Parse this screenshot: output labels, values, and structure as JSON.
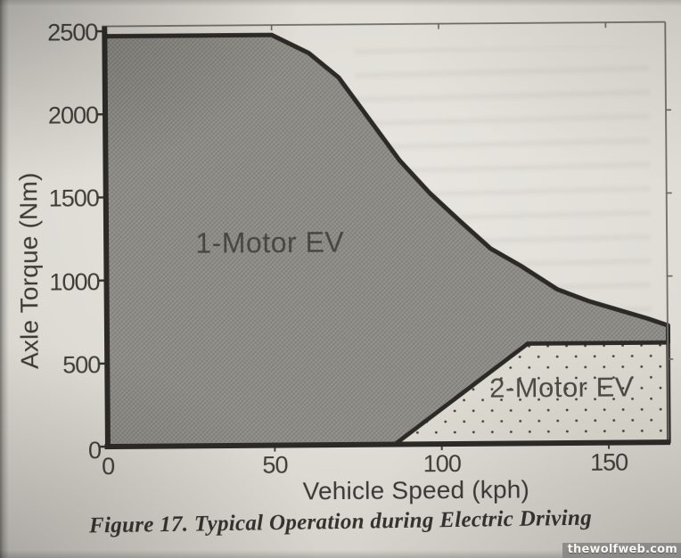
{
  "figure": {
    "caption": "Figure 17. Typical Operation during Electric Driving",
    "watermark": "thewolfweb.com"
  },
  "chart_data": {
    "type": "area",
    "title": "",
    "xlabel": "Vehicle Speed (kph)",
    "ylabel": "Axle Torque (Nm)",
    "xlim": [
      0,
      168
    ],
    "ylim": [
      0,
      2500
    ],
    "x_ticks": [
      0,
      50,
      100,
      150
    ],
    "y_ticks": [
      0,
      500,
      1000,
      1500,
      2000,
      2500
    ],
    "grid": false,
    "legend": "labels drawn inside regions",
    "regions": [
      {
        "name": "1-motor-ev",
        "label": "1-Motor EV",
        "label_pos": {
          "speed_kph": 49,
          "torque_nm": 1220
        },
        "fill": "#8e8d88",
        "pattern": "hatch",
        "points": [
          [
            0,
            0
          ],
          [
            0,
            2470
          ],
          [
            50,
            2470
          ],
          [
            61,
            2360
          ],
          [
            70,
            2210
          ],
          [
            79,
            1960
          ],
          [
            88,
            1710
          ],
          [
            97,
            1510
          ],
          [
            106,
            1340
          ],
          [
            115,
            1175
          ],
          [
            124,
            1070
          ],
          [
            135,
            925
          ],
          [
            144,
            855
          ],
          [
            153,
            800
          ],
          [
            162,
            745
          ],
          [
            168,
            703
          ],
          [
            168,
            600
          ],
          [
            126,
            600
          ],
          [
            86,
            0
          ]
        ]
      },
      {
        "name": "2-motor-ev",
        "label": "2-Motor EV",
        "label_pos": {
          "speed_kph": 136,
          "torque_nm": 330
        },
        "fill": "#dcd9d0",
        "pattern": "dots",
        "points": [
          [
            86,
            0
          ],
          [
            126,
            600
          ],
          [
            168,
            600
          ],
          [
            168,
            0
          ]
        ]
      }
    ]
  },
  "colors": {
    "paper": "#ddd bd4",
    "axis_line": "#2b2a27",
    "frame_line": "#6e6c66",
    "region1_fill": "#8e8d88",
    "region2_fill": "#dcd9d0",
    "dot_color": "#44433e",
    "text": "#3a3935",
    "watermark_bar": "#898885",
    "watermark_text": "#f8f7f4"
  }
}
